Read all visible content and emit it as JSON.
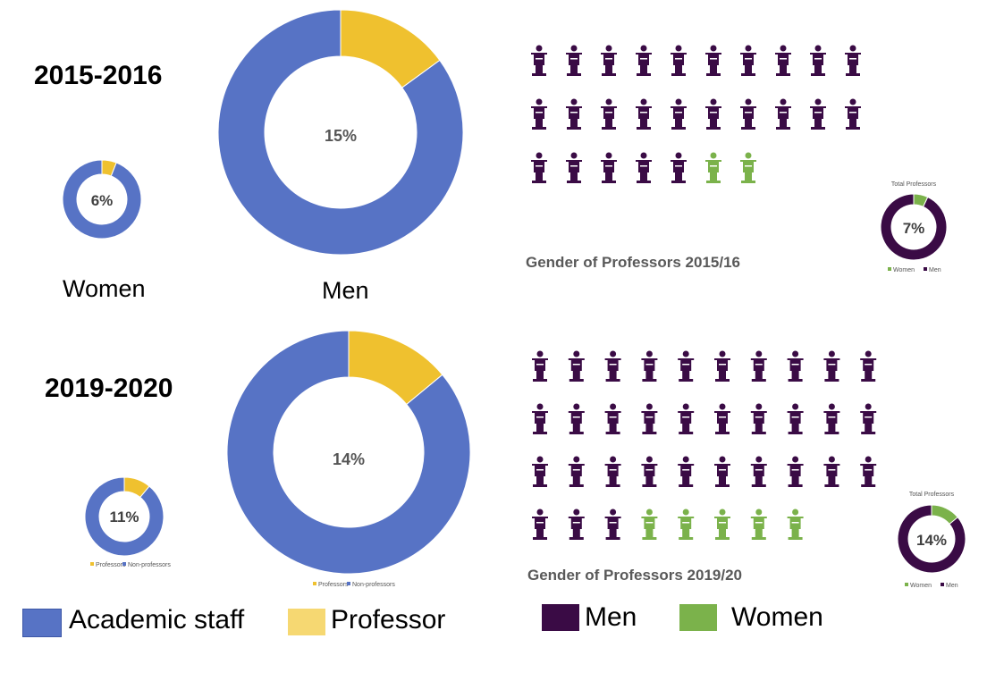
{
  "colors": {
    "academic_staff": "#5773c5",
    "professor": "#efc12f",
    "men": "#3a0b45",
    "women": "#7bb24b",
    "legend_professor": "#f6d872"
  },
  "labels": {
    "year_2015": "2015-2016",
    "year_2019": "2019-2020",
    "women": "Women",
    "men": "Men",
    "picto_title_2015": "Gender of Professors 2015/16",
    "picto_title_2019": "Gender of Professors 2019/20",
    "total_professors": "Total Professors",
    "legend_professors_small": "Professors",
    "legend_nonprofessors_small": "Non-professors",
    "legend_women_small": "Women",
    "legend_men_small": "Men"
  },
  "legend": {
    "academic_staff": "Academic staff",
    "professor": "Professor",
    "men": "Men",
    "women": "Women"
  },
  "chart_data": [
    {
      "type": "pie",
      "id": "women-2015",
      "center_label": "6%",
      "categories": [
        "Professors",
        "Non-professors"
      ],
      "values": [
        6,
        94
      ]
    },
    {
      "type": "pie",
      "id": "men-2015",
      "center_label": "15%",
      "categories": [
        "Professors",
        "Non-professors"
      ],
      "values": [
        15,
        85
      ]
    },
    {
      "type": "pie",
      "id": "women-2019",
      "center_label": "11%",
      "categories": [
        "Professors",
        "Non-professors"
      ],
      "values": [
        11,
        89
      ]
    },
    {
      "type": "pie",
      "id": "men-2019",
      "center_label": "14%",
      "categories": [
        "Professors",
        "Non-professors"
      ],
      "values": [
        14,
        86
      ]
    },
    {
      "type": "pie",
      "id": "total-prof-2015",
      "title": "Total Professors",
      "center_label": "7%",
      "categories": [
        "Women",
        "Men"
      ],
      "values": [
        7,
        93
      ]
    },
    {
      "type": "pie",
      "id": "total-prof-2019",
      "title": "Total Professors",
      "center_label": "14%",
      "categories": [
        "Women",
        "Men"
      ],
      "values": [
        14,
        86
      ]
    },
    {
      "type": "table",
      "id": "picto-2015",
      "title": "Gender of Professors 2015/16",
      "categories": [
        "Men",
        "Women"
      ],
      "values": [
        25,
        2
      ]
    },
    {
      "type": "table",
      "id": "picto-2019",
      "title": "Gender of Professors 2019/20",
      "categories": [
        "Men",
        "Women"
      ],
      "values": [
        33,
        5
      ]
    }
  ]
}
